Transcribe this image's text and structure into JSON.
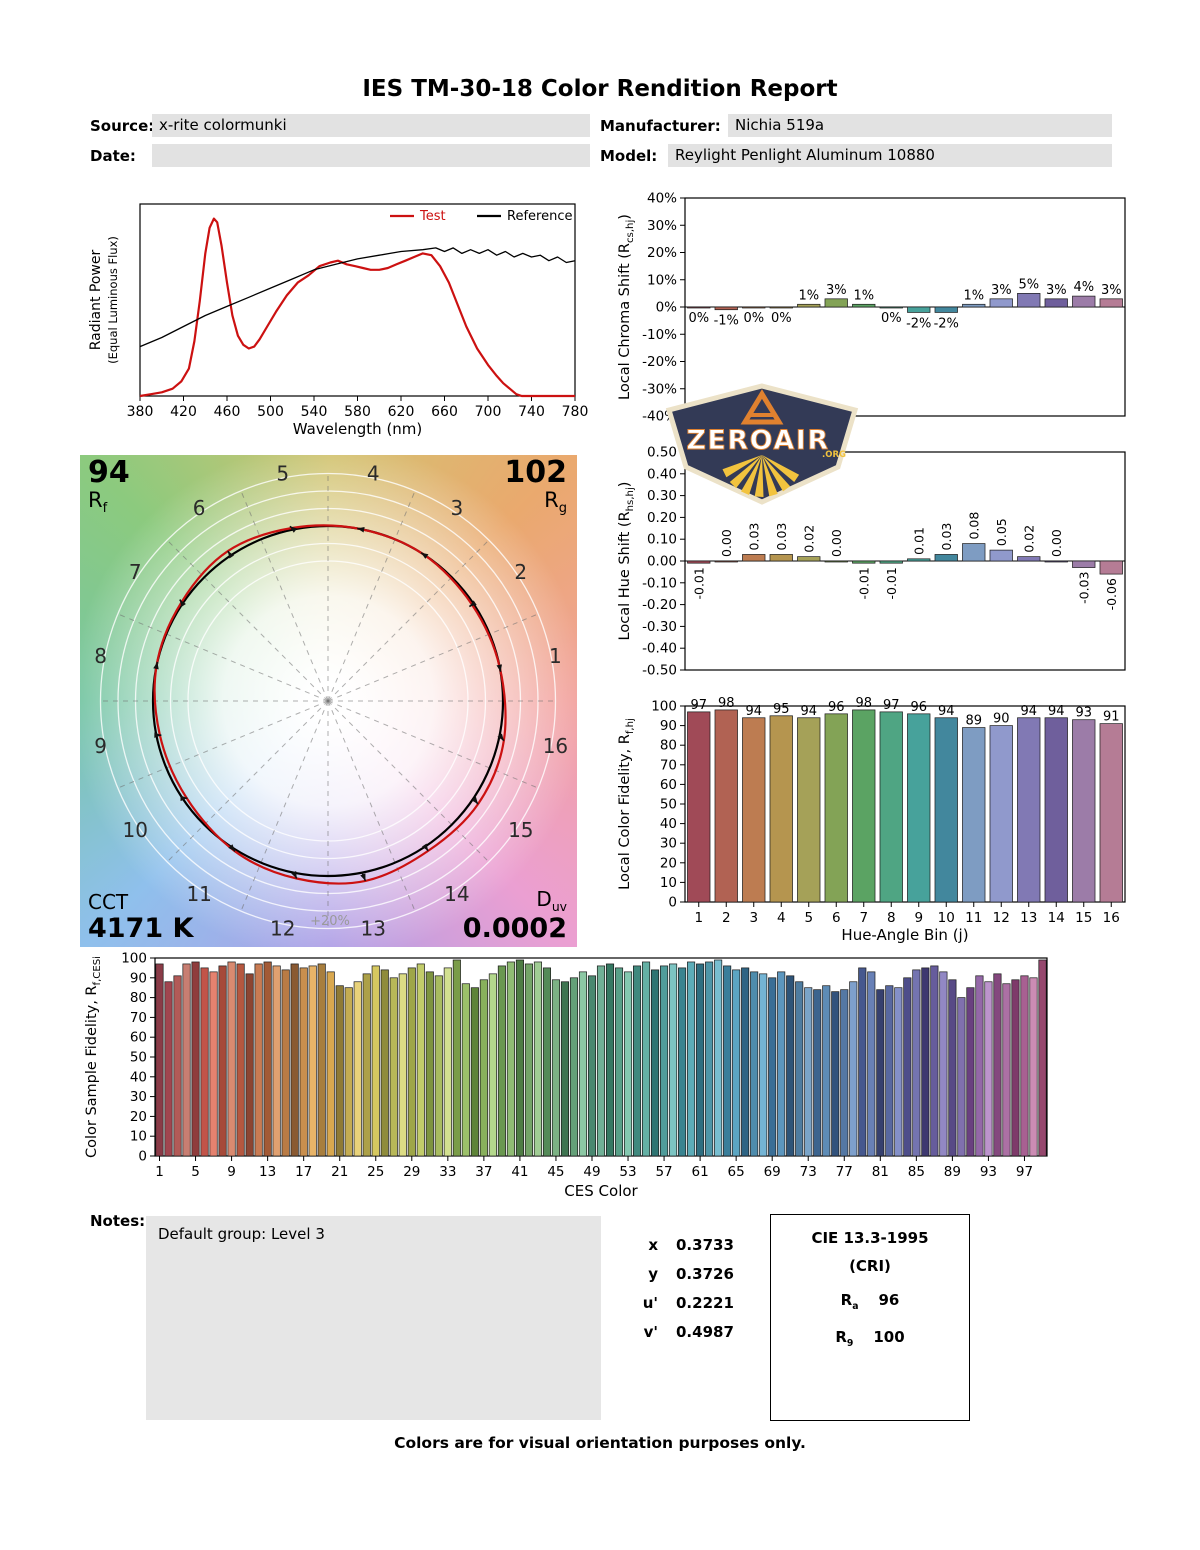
{
  "report": {
    "title": "IES TM-30-18 Color Rendition Report",
    "source_label": "Source:",
    "source_value": "x-rite colormunki",
    "manufacturer_label": "Manufacturer:",
    "manufacturer_value": "Nichia 519a",
    "date_label": "Date:",
    "date_value": "",
    "model_label": "Model:",
    "model_value": "Reylight Penlight Aluminum 10880",
    "footer_note": "Colors are for visual orientation purposes only."
  },
  "logo": {
    "text": "ZEROAIR",
    "suffix": ".ORG"
  },
  "notes": {
    "label": "Notes:",
    "text": "Default group: Level 3"
  },
  "chromaticity": {
    "rows": [
      {
        "label": "x",
        "value": "0.3733"
      },
      {
        "label": "y",
        "value": "0.3726"
      },
      {
        "label": "u'",
        "value": "0.2221"
      },
      {
        "label": "v'",
        "value": "0.4987"
      }
    ]
  },
  "cri": {
    "title": "CIE 13.3-1995",
    "subtitle": "(CRI)",
    "ra_symbol": "R",
    "ra_sub": "a",
    "ra_value": "96",
    "r9_symbol": "R",
    "r9_sub": "9",
    "r9_value": "100"
  },
  "cvg": {
    "rf_value": "94",
    "rf_symbol": "R",
    "rf_sub": "f",
    "rg_value": "102",
    "rg_symbol": "R",
    "rg_sub": "g",
    "cct_label": "CCT",
    "cct_value": "4171 K",
    "duv_symbol": "D",
    "duv_sub": "uv",
    "duv_value": "0.0002",
    "ring_label": "+20%",
    "bins": [
      1,
      2,
      3,
      4,
      5,
      6,
      7,
      8,
      9,
      10,
      11,
      12,
      13,
      14,
      15,
      16
    ],
    "rcs_percent": [
      0,
      -1,
      0,
      0,
      1,
      3,
      1,
      0,
      -2,
      -2,
      1,
      3,
      5,
      3,
      4,
      3
    ],
    "rhs": [
      -0.01,
      0.0,
      0.03,
      0.03,
      0.02,
      0.0,
      -0.01,
      -0.01,
      0.01,
      0.03,
      0.08,
      0.05,
      0.02,
      0.0,
      -0.03,
      -0.06
    ]
  },
  "hue_bin_colors": [
    "#A04A57",
    "#B16253",
    "#BD7C51",
    "#B5954F",
    "#A5A158",
    "#83A356",
    "#5BA363",
    "#4FA583",
    "#47A29B",
    "#42879D",
    "#7E9CC2",
    "#9099CC",
    "#8179B4",
    "#6F5F9C",
    "#9C7CA8",
    "#B57C95"
  ],
  "chart_data": [
    {
      "id": "spd",
      "type": "line",
      "xlabel": "Wavelength (nm)",
      "ylabel_lines": [
        "Radiant Power",
        "(Equal Luminous Flux)"
      ],
      "xlim": [
        380,
        780
      ],
      "ylim": [
        0,
        1.05
      ],
      "xticks": [
        380,
        420,
        460,
        500,
        540,
        580,
        620,
        660,
        700,
        740,
        780
      ],
      "legend": [
        {
          "name": "Test",
          "color": "#cc1111",
          "text_color": "#cc1111"
        },
        {
          "name": "Reference",
          "color": "#000000",
          "text_color": "#000000"
        }
      ],
      "series": [
        {
          "name": "Test",
          "color": "#cc1111",
          "width": 2.2,
          "x": [
            380,
            390,
            400,
            410,
            418,
            425,
            430,
            435,
            440,
            444,
            448,
            451,
            455,
            460,
            465,
            470,
            475,
            480,
            485,
            490,
            497,
            505,
            515,
            525,
            535,
            545,
            555,
            562,
            570,
            578,
            585,
            592,
            600,
            608,
            616,
            624,
            632,
            640,
            648,
            656,
            664,
            672,
            680,
            690,
            700,
            708,
            714,
            720,
            726,
            731,
            740,
            780
          ],
          "y": [
            0.0,
            0.01,
            0.02,
            0.04,
            0.08,
            0.15,
            0.3,
            0.52,
            0.78,
            0.92,
            0.97,
            0.95,
            0.82,
            0.62,
            0.44,
            0.33,
            0.28,
            0.26,
            0.27,
            0.31,
            0.38,
            0.46,
            0.55,
            0.62,
            0.66,
            0.71,
            0.73,
            0.74,
            0.72,
            0.71,
            0.7,
            0.69,
            0.69,
            0.7,
            0.72,
            0.74,
            0.76,
            0.78,
            0.77,
            0.71,
            0.62,
            0.5,
            0.38,
            0.26,
            0.17,
            0.11,
            0.07,
            0.04,
            0.01,
            0.0,
            0.0,
            0.0
          ]
        },
        {
          "name": "Reference",
          "color": "#000000",
          "width": 1.3,
          "x": [
            380,
            400,
            420,
            440,
            460,
            480,
            500,
            520,
            540,
            560,
            580,
            600,
            620,
            640,
            652,
            660,
            668,
            676,
            684,
            692,
            700,
            708,
            716,
            724,
            732,
            740,
            748,
            756,
            764,
            772,
            780
          ],
          "y": [
            0.27,
            0.32,
            0.38,
            0.44,
            0.49,
            0.54,
            0.59,
            0.64,
            0.69,
            0.72,
            0.75,
            0.77,
            0.79,
            0.8,
            0.81,
            0.79,
            0.81,
            0.78,
            0.8,
            0.78,
            0.8,
            0.77,
            0.79,
            0.76,
            0.78,
            0.76,
            0.77,
            0.74,
            0.76,
            0.73,
            0.74
          ]
        }
      ]
    },
    {
      "id": "chroma_shift",
      "type": "bar",
      "ylabel_parts": [
        {
          "t": "Local Chroma Shift (R"
        },
        {
          "t": "cs,hj",
          "sub": true
        },
        {
          "t": ")"
        }
      ],
      "ylim": [
        -40,
        40
      ],
      "yticks": [
        40,
        30,
        20,
        10,
        0,
        -10,
        -20,
        -30,
        -40
      ],
      "ytick_labels": [
        "40%",
        "30%",
        "20%",
        "10%",
        "0%",
        "-10%",
        "-20%",
        "-30%",
        "-40%"
      ],
      "values": [
        0,
        -1,
        0,
        0,
        1,
        3,
        1,
        0,
        -2,
        -2,
        1,
        3,
        5,
        3,
        4,
        3
      ],
      "labels": [
        "0%",
        "-1%",
        "0%",
        "0%",
        "1%",
        "3%",
        "1%",
        "0%",
        "-2%",
        "-2%",
        "1%",
        "3%",
        "5%",
        "3%",
        "4%",
        "3%"
      ],
      "label_rotate": false,
      "zero_label_above": false,
      "colors": "hue_bins"
    },
    {
      "id": "hue_shift",
      "type": "bar",
      "ylabel_parts": [
        {
          "t": "Local Hue Shift (R"
        },
        {
          "t": "hs,hj",
          "sub": true
        },
        {
          "t": ")"
        }
      ],
      "ylim": [
        -0.5,
        0.5
      ],
      "yticks": [
        0.5,
        0.4,
        0.3,
        0.2,
        0.1,
        0,
        -0.1,
        -0.2,
        -0.3,
        -0.4,
        -0.5
      ],
      "ytick_labels": [
        "0.50",
        "0.40",
        "0.30",
        "0.20",
        "0.10",
        "0.00",
        "-0.10",
        "-0.20",
        "-0.30",
        "-0.40",
        "-0.50"
      ],
      "values": [
        -0.01,
        0.0,
        0.03,
        0.03,
        0.02,
        0.0,
        -0.01,
        -0.01,
        0.01,
        0.03,
        0.08,
        0.05,
        0.02,
        0.0,
        -0.03,
        -0.06
      ],
      "labels": [
        "-0.01",
        "0.00",
        "0.03",
        "0.03",
        "0.02",
        "0.00",
        "-0.01",
        "-0.01",
        "0.01",
        "0.03",
        "0.08",
        "0.05",
        "0.02",
        "0.00",
        "-0.03",
        "-0.06"
      ],
      "label_rotate": true,
      "zero_label_above": true,
      "colors": "hue_bins"
    },
    {
      "id": "local_fidelity",
      "type": "bar",
      "xlabel": "Hue-Angle Bin (j)",
      "ylabel_parts": [
        {
          "t": "Local Color Fidelity, R"
        },
        {
          "t": "f,hj",
          "sub": true
        }
      ],
      "ylim": [
        0,
        100
      ],
      "yticks": [
        100,
        90,
        80,
        70,
        60,
        50,
        40,
        30,
        20,
        10,
        0
      ],
      "ytick_labels": [
        "100",
        "90",
        "80",
        "70",
        "60",
        "50",
        "40",
        "30",
        "20",
        "10",
        "0"
      ],
      "values": [
        97,
        98,
        94,
        95,
        94,
        96,
        98,
        97,
        96,
        94,
        89,
        90,
        94,
        94,
        93,
        91
      ],
      "labels": [
        "97",
        "98",
        "94",
        "95",
        "94",
        "96",
        "98",
        "97",
        "96",
        "94",
        "89",
        "90",
        "94",
        "94",
        "93",
        "91"
      ],
      "labels_at": "top",
      "xtick_labels": [
        "1",
        "2",
        "3",
        "4",
        "5",
        "6",
        "7",
        "8",
        "9",
        "10",
        "11",
        "12",
        "13",
        "14",
        "15",
        "16"
      ],
      "xtick_every": 1,
      "colors": "hue_bins"
    },
    {
      "id": "ces_fidelity",
      "type": "bar",
      "xlabel": "CES Color",
      "ylabel_parts": [
        {
          "t": "Color Sample Fidelity, R"
        },
        {
          "t": "f,CESi",
          "sub": true
        }
      ],
      "ylim": [
        0,
        100
      ],
      "yticks": [
        100,
        90,
        80,
        70,
        60,
        50,
        40,
        30,
        20,
        10,
        0
      ],
      "ytick_labels": [
        "100",
        "90",
        "80",
        "70",
        "60",
        "50",
        "40",
        "30",
        "20",
        "10",
        "0"
      ],
      "values": [
        97,
        88,
        91,
        97,
        98,
        95,
        93,
        96,
        98,
        97,
        92,
        97,
        98,
        96,
        94,
        97,
        95,
        96,
        97,
        93,
        86,
        85,
        88,
        92,
        96,
        94,
        90,
        92,
        95,
        97,
        93,
        91,
        95,
        99,
        87,
        85,
        89,
        92,
        96,
        98,
        99,
        97,
        98,
        95,
        89,
        88,
        90,
        93,
        91,
        96,
        97,
        95,
        93,
        96,
        98,
        94,
        96,
        97,
        95,
        98,
        97,
        98,
        99,
        96,
        94,
        95,
        93,
        92,
        90,
        93,
        91,
        88,
        85,
        84,
        86,
        83,
        84,
        88,
        95,
        93,
        84,
        86,
        85,
        90,
        94,
        95,
        96,
        93,
        89,
        80,
        85,
        91,
        88,
        92,
        87,
        89,
        91,
        90,
        99
      ],
      "xtick_labels": [
        "1",
        "5",
        "9",
        "13",
        "17",
        "21",
        "25",
        "29",
        "33",
        "37",
        "41",
        "45",
        "49",
        "53",
        "57",
        "61",
        "65",
        "69",
        "73",
        "77",
        "81",
        "85",
        "89",
        "93",
        "97"
      ],
      "xtick_every": 4,
      "colors": [
        "#8A3B47",
        "#A1454F",
        "#B25A57",
        "#C87E72",
        "#8F3C3C",
        "#C25449",
        "#E5826F",
        "#A64A3A",
        "#D98A70",
        "#B5573F",
        "#8C4532",
        "#C97B53",
        "#A35A36",
        "#E0A070",
        "#B97B45",
        "#8A5A32",
        "#C98F4E",
        "#E8B468",
        "#A87E3E",
        "#D9A84F",
        "#8F7A35",
        "#C4AC52",
        "#E8D27A",
        "#ACA048",
        "#D6C860",
        "#8F8C3C",
        "#B8B858",
        "#DCDC84",
        "#9EA648",
        "#C2CC6A",
        "#7E9440",
        "#A8BC60",
        "#D2E090",
        "#7A9C48",
        "#9CC06A",
        "#5E8438",
        "#88B05C",
        "#B4D88C",
        "#6A9850",
        "#90BC74",
        "#4E7C44",
        "#74A468",
        "#A0CC94",
        "#548A58",
        "#7CB284",
        "#3E7450",
        "#64A078",
        "#8CC8A4",
        "#4A8870",
        "#70B096",
        "#357862",
        "#58A088",
        "#84C8B0",
        "#40897E",
        "#64B0A4",
        "#2E7472",
        "#509C9A",
        "#7CC4C2",
        "#3A8490",
        "#5CACB8",
        "#2E6E80",
        "#4E96A8",
        "#78BED0",
        "#3A7E9A",
        "#5CA6C2",
        "#2E6484",
        "#4E8CAC",
        "#74B4D4",
        "#3A6E96",
        "#5C96BE",
        "#2E5478",
        "#4E7CA0",
        "#7AA4C8",
        "#3C648E",
        "#5E8CB6",
        "#32527C",
        "#5478A4",
        "#7EA0CC",
        "#46588E",
        "#6880B6",
        "#36406E",
        "#5868A0",
        "#8490C8",
        "#4E4E8A",
        "#7474B0",
        "#3E3870",
        "#665C9C",
        "#9288C4",
        "#584A86",
        "#8070AE",
        "#6A4080",
        "#9468A8",
        "#BC94CC",
        "#84487E",
        "#AC70A4",
        "#7E3A6A",
        "#A86092",
        "#CC8CB4",
        "#96486E"
      ]
    }
  ]
}
